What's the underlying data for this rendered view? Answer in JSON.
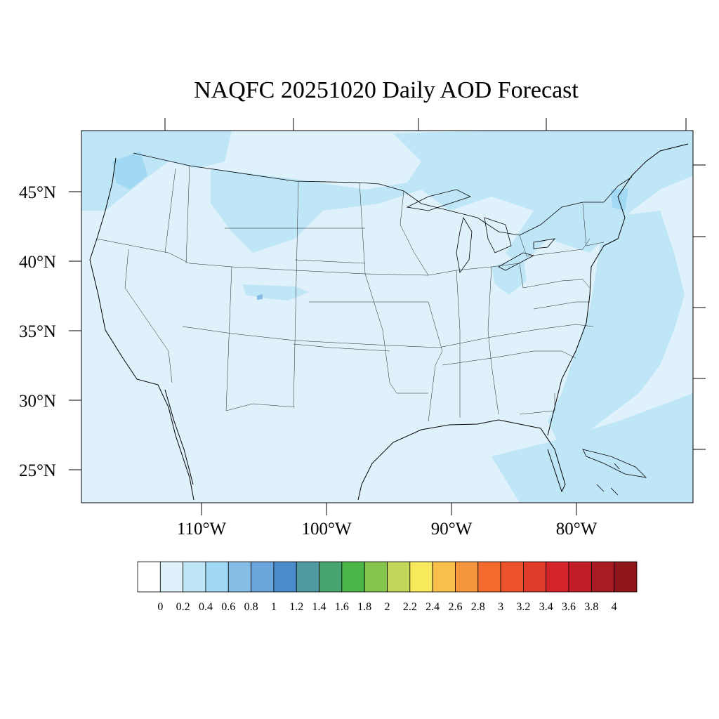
{
  "title": "NAQFC 20251020 Daily AOD Forecast",
  "lat_labels": [
    "45°N",
    "40°N",
    "35°N",
    "30°N",
    "25°N"
  ],
  "lon_labels": [
    "110°W",
    "100°W",
    "90°W",
    "80°W"
  ],
  "colorbar": {
    "labels": [
      "0",
      "0.2",
      "0.4",
      "0.6",
      "0.8",
      "1",
      "1.2",
      "1.4",
      "1.6",
      "1.8",
      "2",
      "2.2",
      "2.4",
      "2.6",
      "2.8",
      "3",
      "3.2",
      "3.4",
      "3.6",
      "3.8",
      "4"
    ],
    "colors": [
      "#ffffff",
      "#dff1fb",
      "#bfe6f7",
      "#a1d8f3",
      "#85bde6",
      "#6aa6dc",
      "#4a8cc9",
      "#4e9aa0",
      "#49a56f",
      "#4bb548",
      "#86c54c",
      "#c4d65a",
      "#f8e85b",
      "#f8c04a",
      "#f6963e",
      "#f26a2c",
      "#ec5229",
      "#e03a29",
      "#d42329",
      "#c01d26",
      "#a91b22",
      "#8e1519"
    ]
  },
  "map": {
    "background_color": "#dff1fb",
    "feature_color": "#bfe6f7",
    "accent_color": "#a1d8f3"
  }
}
